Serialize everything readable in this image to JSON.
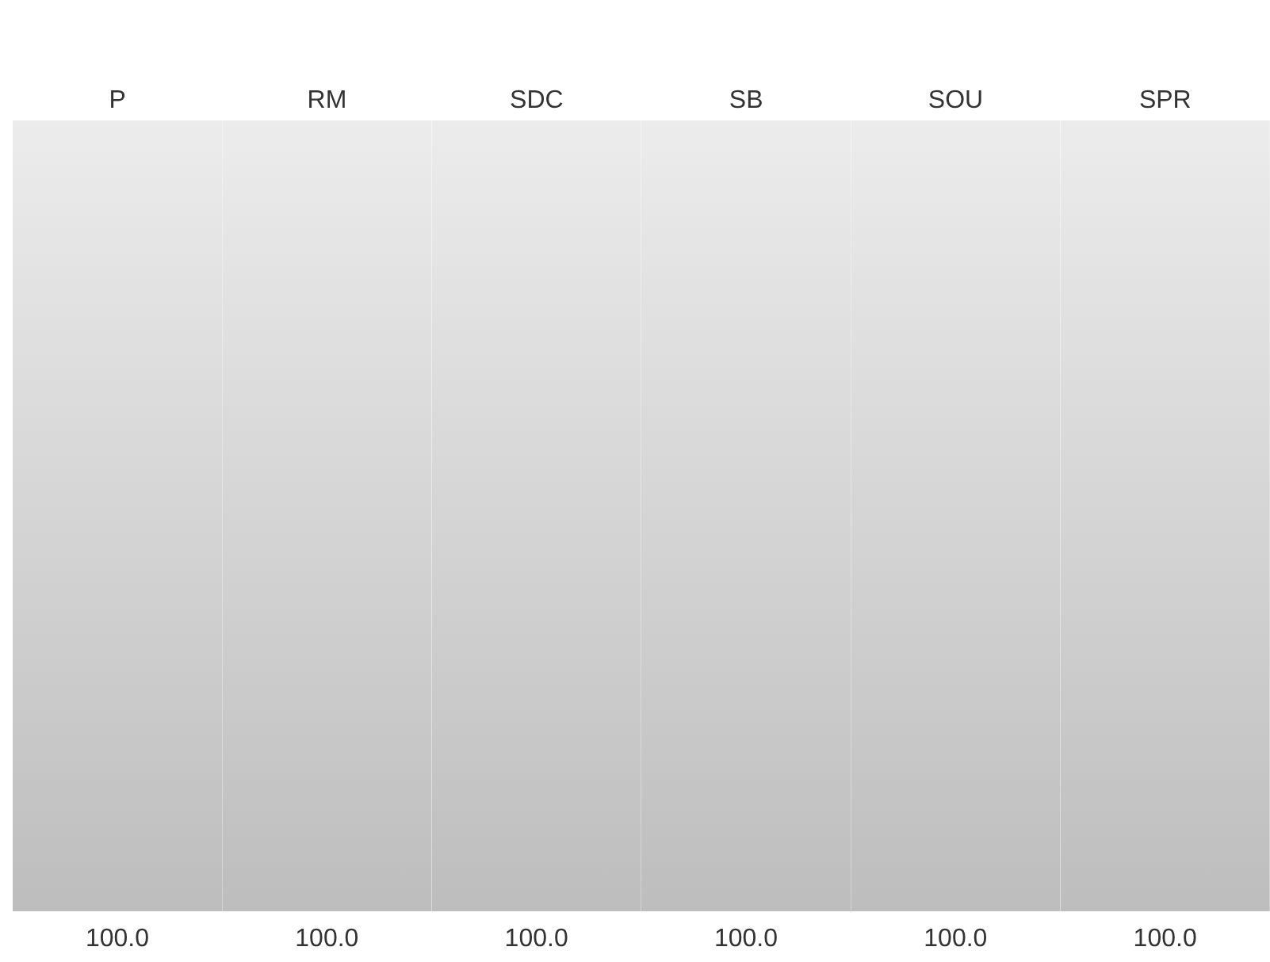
{
  "chart_data": {
    "type": "bar",
    "categories": [
      "P",
      "RM",
      "SDC",
      "SB",
      "SOU",
      "SPR"
    ],
    "values": [
      100,
      100,
      100,
      100,
      100,
      100
    ],
    "value_labels": [
      "100.0",
      "100.0",
      "100.0",
      "100.0",
      "100.0",
      "100.0"
    ],
    "color": "#bdbdbd",
    "ylim": [
      0,
      100
    ],
    "tick_labels": "x",
    "grid": false,
    "legend": false
  }
}
